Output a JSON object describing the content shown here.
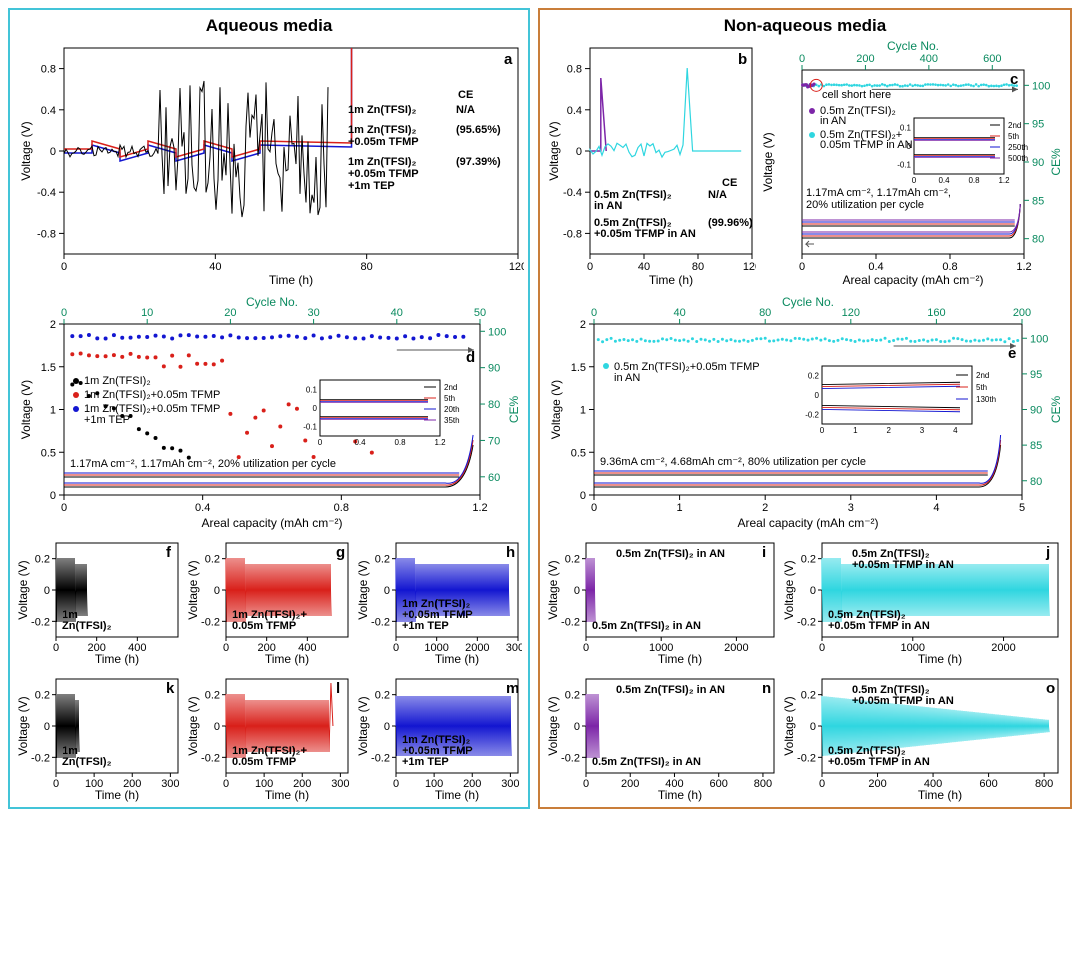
{
  "titles": {
    "left": "Aqueous media",
    "right": "Non-aqueous media"
  },
  "colors": {
    "black": "#000000",
    "red": "#d9201a",
    "blue": "#1316d1",
    "purple": "#7d26a8",
    "cyan": "#2fd6e0",
    "green": "#0a8a5f",
    "grey": "#777777",
    "border_left": "#43c4d8",
    "border_right": "#c97e3a"
  },
  "panel_a": {
    "letter": "a",
    "xlabel": "Time (h)",
    "ylabel": "Voltage (V)",
    "xlim": [
      0,
      120
    ],
    "xticks": [
      0,
      40,
      80,
      120
    ],
    "ylim": [
      -1,
      1
    ],
    "yticks": [
      -0.8,
      -0.4,
      0,
      0.4,
      0.8
    ],
    "ce_header": "CE",
    "legend": [
      {
        "color": "#000000",
        "lines": [
          "1m Zn(TFSI)₂"
        ],
        "ce": "N/A"
      },
      {
        "color": "#d9201a",
        "lines": [
          "1m Zn(TFSI)₂",
          "+0.05m TFMP"
        ],
        "ce": "(95.65%)"
      },
      {
        "color": "#1316d1",
        "lines": [
          "1m Zn(TFSI)₂",
          "+0.05m TFMP",
          "+1m TEP"
        ],
        "ce": "(97.39%)"
      }
    ]
  },
  "panel_b": {
    "letter": "b",
    "xlabel": "Time (h)",
    "ylabel": "Voltage (V)",
    "xlim": [
      0,
      120
    ],
    "xticks": [
      0,
      40,
      80,
      120
    ],
    "ylim": [
      -1,
      1
    ],
    "yticks": [
      -0.8,
      -0.4,
      0,
      0.4,
      0.8
    ],
    "ce_header": "CE",
    "legend": [
      {
        "color": "#7d26a8",
        "lines": [
          "0.5m Zn(TFSI)₂",
          "in AN"
        ],
        "ce": "N/A"
      },
      {
        "color": "#2fd6e0",
        "lines": [
          "0.5m Zn(TFSI)₂",
          "+0.05m TFMP in AN"
        ],
        "ce": "(99.96%)"
      }
    ]
  },
  "panel_c": {
    "letter": "c",
    "xlabel": "Areal capacity (mAh cm⁻²)",
    "ylabel": "Voltage (V)",
    "x2label": "Cycle No.",
    "y2label": "CE%",
    "xlim": [
      0,
      1.2
    ],
    "xticks": [
      0,
      0.4,
      0.8,
      1.2
    ],
    "x2lim": [
      0,
      700
    ],
    "x2ticks": [
      0,
      200,
      400,
      600
    ],
    "y2lim": [
      78,
      102
    ],
    "y2ticks": [
      80,
      85,
      90,
      95,
      100
    ],
    "ylim": [
      -0.6,
      0.5
    ],
    "note": "1.17mA cm⁻², 1.17mAh cm⁻²,",
    "note2": "20% utilization per cycle",
    "short_note": "cell short here",
    "inset": {
      "xticks": [
        0,
        0.4,
        0.8,
        1.2
      ],
      "yticks": [
        -0.1,
        0,
        0.1
      ],
      "legend": [
        "2nd",
        "5th",
        "250th",
        "500th"
      ]
    },
    "legend": [
      {
        "color": "#7d26a8",
        "text": "0.5m Zn(TFSI)₂",
        "text2": "in AN"
      },
      {
        "color": "#2fd6e0",
        "text": "0.5m Zn(TFSI)₂+",
        "text2": "0.05m TFMP in AN"
      }
    ]
  },
  "panel_d": {
    "letter": "d",
    "xlabel": "Areal capacity (mAh cm⁻²)",
    "ylabel": "Voltage (V)",
    "x2label": "Cycle No.",
    "y2label": "CE%",
    "xlim": [
      0,
      1.2
    ],
    "xticks": [
      0,
      0.4,
      0.8,
      1.2
    ],
    "ylim": [
      0,
      2
    ],
    "yticks": [
      0,
      0.5,
      1,
      1.5,
      2
    ],
    "x2lim": [
      0,
      50
    ],
    "x2ticks": [
      0,
      10,
      20,
      30,
      40,
      50
    ],
    "y2lim": [
      55,
      102
    ],
    "y2ticks": [
      60,
      70,
      80,
      90,
      100
    ],
    "note": "1.17mA cm⁻², 1.17mAh cm⁻², 20% utilization per cycle",
    "inset": {
      "xticks": [
        0,
        0.4,
        0.8,
        1.2
      ],
      "yticks": [
        -0.1,
        0,
        0.1
      ],
      "legend": [
        "2nd",
        "5th",
        "20th",
        "35th"
      ]
    },
    "legend": [
      {
        "color": "#000000",
        "text": "1m Zn(TFSI)₂"
      },
      {
        "color": "#d9201a",
        "text": "1m Zn(TFSI)₂+0.05m TFMP"
      },
      {
        "color": "#1316d1",
        "text": "1m Zn(TFSI)₂+0.05m TFMP",
        "text2": "+1m TEP"
      }
    ]
  },
  "panel_e": {
    "letter": "e",
    "xlabel": "Areal capacity (mAh cm⁻²)",
    "ylabel": "Voltage (V)",
    "x2label": "Cycle No.",
    "y2label": "CE%",
    "xlim": [
      0,
      5
    ],
    "xticks": [
      0,
      1,
      2,
      3,
      4,
      5
    ],
    "ylim": [
      0,
      2
    ],
    "yticks": [
      0,
      0.5,
      1,
      1.5,
      2
    ],
    "x2lim": [
      0,
      200
    ],
    "x2ticks": [
      0,
      40,
      80,
      120,
      160,
      200
    ],
    "y2lim": [
      78,
      102
    ],
    "y2ticks": [
      80,
      85,
      90,
      95,
      100
    ],
    "note": "9.36mA cm⁻², 4.68mAh cm⁻², 80% utilization per cycle",
    "inset": {
      "xticks": [
        0,
        1,
        2,
        3,
        4
      ],
      "yticks": [
        -0.2,
        0,
        0.2
      ],
      "legend": [
        "2nd",
        "5th",
        "130th"
      ]
    },
    "legend": [
      {
        "color": "#2fd6e0",
        "text": "0.5m Zn(TFSI)₂+0.05m TFMP",
        "text2": "in AN"
      }
    ]
  },
  "small_panels": {
    "ylabel": "Voltage (V)",
    "xlabel": "Time (h)",
    "ylim": [
      -0.3,
      0.3
    ],
    "yticks": [
      -0.2,
      0,
      0.2
    ],
    "f": {
      "letter": "f",
      "color": "#000000",
      "xmax": 600,
      "xticks": [
        0,
        200,
        400
      ],
      "label": [
        "1m",
        "Zn(TFSI)₂"
      ],
      "burst_end": 150
    },
    "g": {
      "letter": "g",
      "color": "#d9201a",
      "xmax": 600,
      "xticks": [
        0,
        200,
        400
      ],
      "label": [
        "1m Zn(TFSI)₂+",
        "0.05m TFMP"
      ],
      "burst_end": 520
    },
    "h": {
      "letter": "h",
      "color": "#1316d1",
      "xmax": 3000,
      "xticks": [
        0,
        1000,
        2000,
        3000
      ],
      "label": [
        "1m Zn(TFSI)₂",
        "+0.05m TFMP",
        "+1m TEP"
      ],
      "burst_end": 2800
    },
    "i": {
      "letter": "i",
      "color": "#7d26a8",
      "xmax": 2500,
      "xticks": [
        0,
        1000,
        2000
      ],
      "label": [
        "0.5m Zn(TFSI)₂ in AN"
      ],
      "burst_end": 120
    },
    "j": {
      "letter": "j",
      "color": "#2fd6e0",
      "xmax": 2600,
      "xticks": [
        0,
        1000,
        2000
      ],
      "label": [
        "0.5m Zn(TFSI)₂",
        "+0.05m TFMP in AN"
      ],
      "burst_end": 2500
    },
    "k": {
      "letter": "k",
      "color": "#000000",
      "xmax": 320,
      "xticks": [
        0,
        100,
        200,
        300
      ],
      "label": [
        "1m",
        "Zn(TFSI)₂"
      ],
      "burst_end": 60
    },
    "l": {
      "letter": "l",
      "color": "#d9201a",
      "xmax": 320,
      "xticks": [
        0,
        100,
        200,
        300
      ],
      "label": [
        "1m Zn(TFSI)₂+",
        "0.05m TFMP"
      ],
      "burst_end": 270,
      "spike": true
    },
    "m": {
      "letter": "m",
      "color": "#1316d1",
      "xmax": 320,
      "xticks": [
        0,
        100,
        200,
        300
      ],
      "label": [
        "1m Zn(TFSI)₂",
        "+0.05m TFMP",
        "+1m TEP"
      ],
      "burst_end": 300,
      "full": true
    },
    "n": {
      "letter": "n",
      "color": "#7d26a8",
      "xmax": 850,
      "xticks": [
        0,
        200,
        400,
        600,
        800
      ],
      "label": [
        "0.5m Zn(TFSI)₂ in AN"
      ],
      "burst_end": 60
    },
    "o": {
      "letter": "o",
      "color": "#2fd6e0",
      "xmax": 850,
      "xticks": [
        0,
        200,
        400,
        600,
        800
      ],
      "label": [
        "0.5m Zn(TFSI)₂",
        "+0.05m TFMP in AN"
      ],
      "burst_end": 820,
      "taper": true
    }
  }
}
